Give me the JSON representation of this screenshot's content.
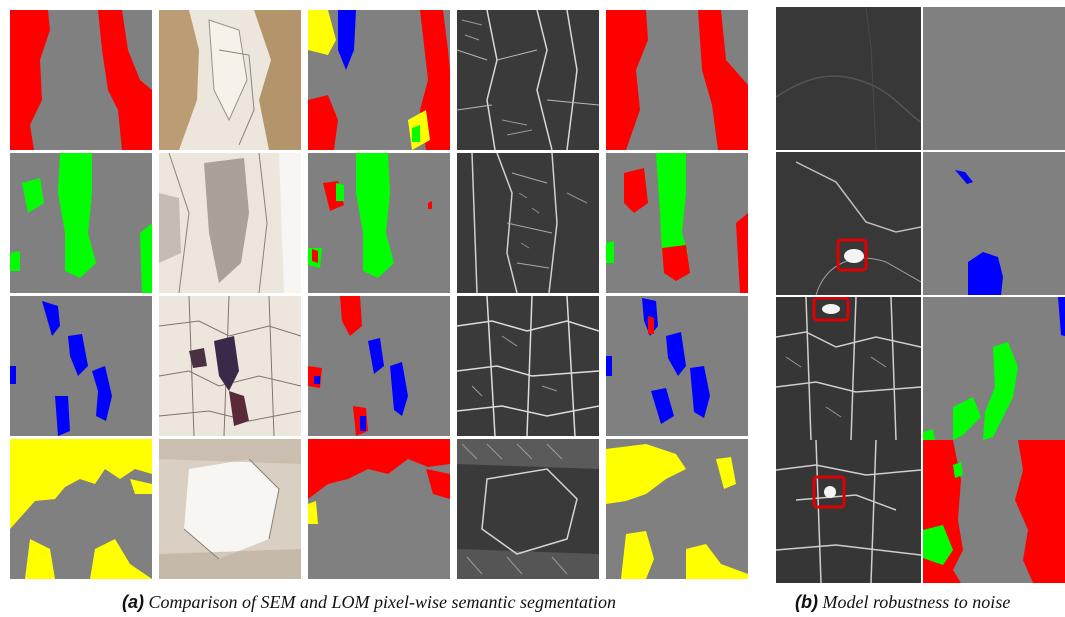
{
  "captions": {
    "a": {
      "label": "(a)",
      "text": "Comparison of SEM and LOM pixel-wise semantic segmentation"
    },
    "b": {
      "label": "(b)",
      "text": "Model robustness to noise"
    }
  },
  "colors": {
    "background": "#808080",
    "class_red": "#ff0000",
    "class_green": "#00ff00",
    "class_blue": "#0000ff",
    "class_yellow": "#ffff00",
    "highlight_box": "#e00000",
    "sem_base": "#3a3a3a",
    "lom_base": "#ece6dc"
  },
  "panel_a": {
    "rows": 4,
    "columns": 5,
    "column_types": [
      "segmentation-mask",
      "lom-micrograph",
      "segmentation-mask",
      "sem-micrograph",
      "segmentation-mask"
    ]
  },
  "panel_b": {
    "rows": 4,
    "columns": 2,
    "column_types": [
      "sem-micrograph-noisy",
      "segmentation-mask"
    ]
  }
}
